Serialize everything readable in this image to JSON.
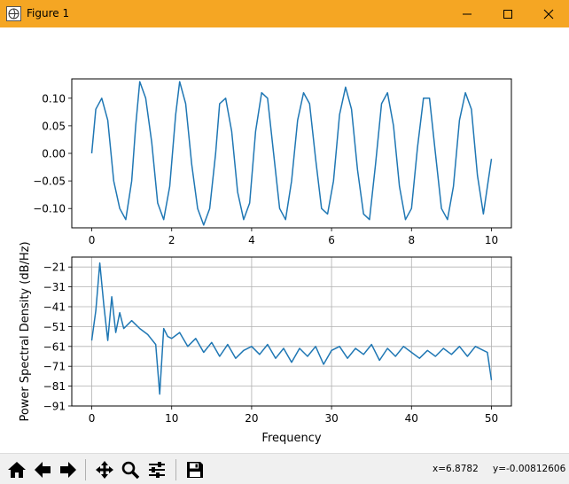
{
  "window": {
    "title": "Figure 1"
  },
  "icons": {
    "app": "matplotlib-figure-icon",
    "minimize": "minimize-icon",
    "maximize": "maximize-icon",
    "close": "close-icon"
  },
  "colors": {
    "titlebar": "#f5a623",
    "line": "#1f77b4",
    "grid": "#b0b0b0",
    "toolbar": "#f0f0f0"
  },
  "toolbar": {
    "buttons": [
      {
        "name": "home-button",
        "icon": "home-icon"
      },
      {
        "name": "back-button",
        "icon": "arrow-left-icon"
      },
      {
        "name": "forward-button",
        "icon": "arrow-right-icon"
      },
      {
        "name": "pan-button",
        "icon": "move-icon"
      },
      {
        "name": "zoom-button",
        "icon": "magnifier-icon"
      },
      {
        "name": "configure-subplots-button",
        "icon": "sliders-icon"
      },
      {
        "name": "save-button",
        "icon": "floppy-disk-icon"
      }
    ],
    "coord_x": "x=6.8782",
    "coord_y": "y=-0.00812606"
  },
  "chart_data": [
    {
      "type": "line",
      "title": "",
      "xlabel": "",
      "ylabel": "",
      "xlim": [
        -0.5,
        10.5
      ],
      "ylim": [
        -0.135,
        0.135
      ],
      "xticks": [
        "0",
        "2",
        "4",
        "6",
        "8",
        "10"
      ],
      "xtick_values": [
        0,
        2,
        4,
        6,
        8,
        10
      ],
      "yticks": [
        "0.10",
        "0.05",
        "0.00",
        "−0.05",
        "−0.10"
      ],
      "ytick_values": [
        0.1,
        0.05,
        0.0,
        -0.05,
        -0.1
      ],
      "grid": false,
      "series": [
        {
          "x": [
            0,
            0.1,
            0.25,
            0.4,
            0.55,
            0.7,
            0.85,
            1.0,
            1.1,
            1.2,
            1.35,
            1.5,
            1.65,
            1.8,
            1.95,
            2.1,
            2.2,
            2.35,
            2.5,
            2.65,
            2.8,
            2.95,
            3.1,
            3.2,
            3.35,
            3.5,
            3.65,
            3.8,
            3.95,
            4.1,
            4.25,
            4.4,
            4.55,
            4.7,
            4.85,
            5.0,
            5.15,
            5.3,
            5.45,
            5.6,
            5.75,
            5.9,
            6.05,
            6.2,
            6.35,
            6.5,
            6.65,
            6.8,
            6.95,
            7.1,
            7.25,
            7.4,
            7.55,
            7.7,
            7.85,
            8.0,
            8.15,
            8.3,
            8.45,
            8.6,
            8.75,
            8.9,
            9.05,
            9.2,
            9.35,
            9.5,
            9.65,
            9.8,
            10.0
          ],
          "y": [
            0.0,
            0.08,
            0.1,
            0.06,
            -0.05,
            -0.1,
            -0.12,
            -0.05,
            0.05,
            0.13,
            0.1,
            0.02,
            -0.09,
            -0.12,
            -0.06,
            0.07,
            0.13,
            0.09,
            -0.02,
            -0.1,
            -0.13,
            -0.1,
            0.0,
            0.09,
            0.1,
            0.04,
            -0.07,
            -0.12,
            -0.09,
            0.04,
            0.11,
            0.1,
            0.0,
            -0.1,
            -0.12,
            -0.05,
            0.06,
            0.11,
            0.09,
            -0.01,
            -0.1,
            -0.11,
            -0.05,
            0.07,
            0.12,
            0.08,
            -0.03,
            -0.11,
            -0.12,
            -0.02,
            0.09,
            0.11,
            0.05,
            -0.06,
            -0.12,
            -0.1,
            0.01,
            0.1,
            0.1,
            0.0,
            -0.1,
            -0.12,
            -0.06,
            0.06,
            0.11,
            0.08,
            -0.04,
            -0.11,
            -0.01
          ]
        }
      ]
    },
    {
      "type": "line",
      "title": "",
      "xlabel": "Frequency",
      "ylabel": "Power Spectral Density (dB/Hz)",
      "xlim": [
        -2.5,
        52.5
      ],
      "ylim": [
        -91,
        -16
      ],
      "xticks": [
        "0",
        "10",
        "20",
        "30",
        "40",
        "50"
      ],
      "xtick_values": [
        0,
        10,
        20,
        30,
        40,
        50
      ],
      "yticks": [
        "−21",
        "−31",
        "−41",
        "−51",
        "−61",
        "−71",
        "−81",
        "−91"
      ],
      "ytick_values": [
        -21,
        -31,
        -41,
        -51,
        -61,
        -71,
        -81,
        -91
      ],
      "grid": true,
      "series": [
        {
          "x": [
            0,
            0.5,
            1,
            1.5,
            2,
            2.5,
            3,
            3.5,
            4,
            5,
            6,
            7,
            8,
            8.5,
            9,
            9.5,
            10,
            11,
            12,
            13,
            14,
            15,
            16,
            17,
            18,
            19,
            20,
            21,
            22,
            23,
            24,
            25,
            26,
            27,
            28,
            29,
            30,
            31,
            32,
            33,
            34,
            35,
            36,
            37,
            38,
            39,
            40,
            41,
            42,
            43,
            44,
            45,
            46,
            47,
            48,
            49,
            49.5,
            50
          ],
          "y": [
            -58,
            -43,
            -19,
            -40,
            -58,
            -36,
            -54,
            -44,
            -52,
            -48,
            -52,
            -55,
            -60,
            -85,
            -52,
            -56,
            -57,
            -54,
            -61,
            -57,
            -64,
            -59,
            -66,
            -60,
            -67,
            -63,
            -61,
            -65,
            -60,
            -67,
            -62,
            -69,
            -62,
            -66,
            -61,
            -70,
            -63,
            -61,
            -67,
            -62,
            -65,
            -60,
            -68,
            -62,
            -66,
            -61,
            -64,
            -67,
            -63,
            -66,
            -62,
            -65,
            -61,
            -66,
            -61,
            -63,
            -64,
            -78
          ]
        }
      ]
    }
  ]
}
